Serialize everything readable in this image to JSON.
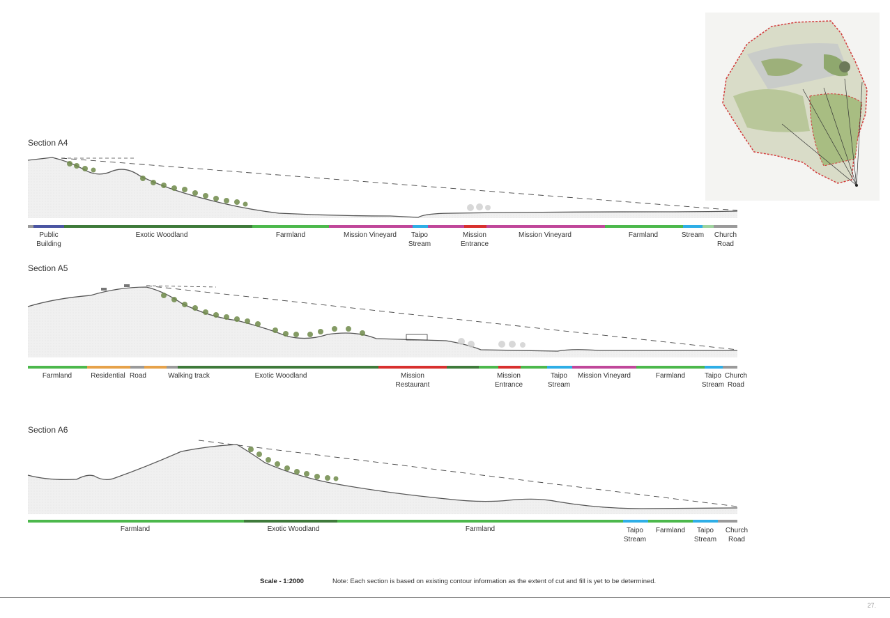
{
  "sections": [
    {
      "title": "Section A4",
      "labels": [
        "Public\nBuilding",
        "Exotic Woodland",
        "Farmland",
        "Mission Vineyard",
        "Taipo\nStream",
        "Mission\nEntrance",
        "Mission Vineyard",
        "Farmland",
        "Stream",
        "Church\nRoad"
      ]
    },
    {
      "title": "Section A5",
      "labels": [
        "Farmland",
        "Residential",
        "Road",
        "Walking track",
        "Exotic Woodland",
        "Mission\nRestaurant",
        "Mission\nEntrance",
        "Taipo\nStream",
        "Mission Vineyard",
        "Farmland",
        "Taipo\nStream",
        "Church\nRoad"
      ]
    },
    {
      "title": "Section A6",
      "labels": [
        "Farmland",
        "Exotic Woodland",
        "Farmland",
        "Taipo\nStream",
        "Farmland",
        "Taipo\nStream",
        "Church\nRoad"
      ]
    }
  ],
  "legend_colors": {
    "farmland": "#4cb84c",
    "exotic_woodland": "#3e7a3a",
    "vineyard": "#c0479a",
    "stream": "#2eaee6",
    "entrance": "#d8302e",
    "road": "#9a9a9a",
    "residential": "#e6a24a",
    "public_building": "#4a55a2"
  },
  "footer": {
    "scale": "Scale - 1:2000",
    "note": "Note: Each section is based on existing contour information as the extent of cut and fill is yet to be determined."
  },
  "page_number": "27."
}
